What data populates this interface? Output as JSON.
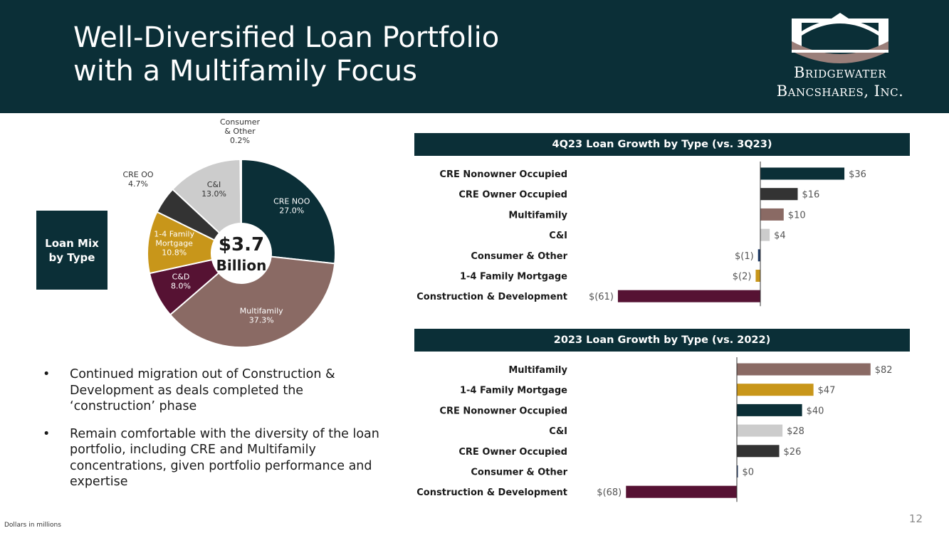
{
  "header": {
    "title_line1": "Well-Diversified Loan Portfolio",
    "title_line2": "with a Multifamily Focus",
    "logo_line1": "Bridgewater",
    "logo_line2": "Bancshares, Inc."
  },
  "loan_mix": {
    "label_line1": "Loan Mix",
    "label_line2": "by Type",
    "center_value": "$3.7",
    "center_unit": "Billion"
  },
  "chart_data": [
    {
      "type": "pie",
      "style": "donut",
      "slices": [
        {
          "label": "CRE NOO",
          "value": 27.0,
          "display": "27.0%",
          "color": "#0b2f37"
        },
        {
          "label": "Multifamily",
          "value": 37.3,
          "display": "37.3%",
          "color": "#8a6a64"
        },
        {
          "label": "C&D",
          "value": 8.0,
          "display": "8.0%",
          "color": "#561233"
        },
        {
          "label": "1-4 Family Mortgage",
          "value": 10.8,
          "display": "10.8%",
          "color": "#c8961a"
        },
        {
          "label": "CRE OO",
          "value": 4.7,
          "display": "4.7%",
          "color": "#333333"
        },
        {
          "label": "C&I",
          "value": 13.0,
          "display": "13.0%",
          "color": "#cccccc"
        },
        {
          "label": "Consumer & Other",
          "value": 0.2,
          "display": "0.2%",
          "color": "#1f3a66"
        }
      ]
    },
    {
      "type": "bar",
      "orientation": "horizontal",
      "title": "4Q23 Loan Growth by Type (vs. 3Q23)",
      "categories": [
        "CRE Nonowner Occupied",
        "CRE Owner Occupied",
        "Multifamily",
        "C&I",
        "Consumer & Other",
        "1-4 Family Mortgage",
        "Construction & Development"
      ],
      "values": [
        36,
        16,
        10,
        4,
        -1,
        -2,
        -61
      ],
      "value_labels": [
        "$36",
        "$16",
        "$10",
        "$4",
        "$(1)",
        "$(2)",
        "$(61)"
      ],
      "colors": [
        "#0b2f37",
        "#333333",
        "#8a6a64",
        "#cccccc",
        "#1f3a66",
        "#c8961a",
        "#561233"
      ],
      "xlim": [
        -61,
        36
      ]
    },
    {
      "type": "bar",
      "orientation": "horizontal",
      "title": "2023 Loan Growth by Type (vs. 2022)",
      "categories": [
        "Multifamily",
        "1-4 Family Mortgage",
        "CRE Nonowner Occupied",
        "C&I",
        "CRE Owner Occupied",
        "Consumer & Other",
        "Construction & Development"
      ],
      "values": [
        82,
        47,
        40,
        28,
        26,
        0,
        -68
      ],
      "value_labels": [
        "$82",
        "$47",
        "$40",
        "$28",
        "$26",
        "$0",
        "$(68)"
      ],
      "colors": [
        "#8a6a64",
        "#c8961a",
        "#0b2f37",
        "#cccccc",
        "#333333",
        "#1f3a66",
        "#561233"
      ],
      "xlim": [
        -68,
        82
      ]
    }
  ],
  "bullets": [
    "Continued migration out of Construction & Development as deals completed the ‘construction’ phase",
    "Remain comfortable with the diversity of the loan portfolio, including CRE and Multifamily concentrations, given portfolio performance and expertise"
  ],
  "footnote": "Dollars in millions",
  "page_number": "12"
}
